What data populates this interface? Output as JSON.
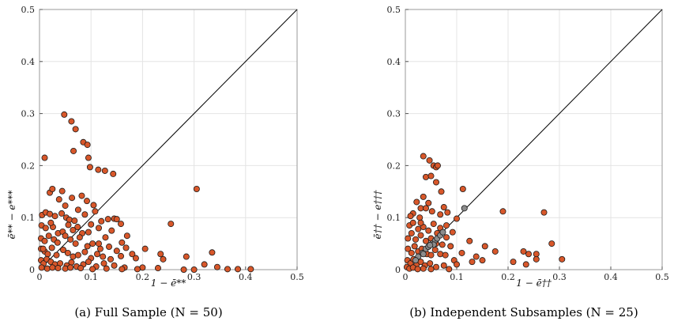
{
  "chart_data": [
    {
      "type": "scatter",
      "caption": "(a) Full Sample (N = 50)",
      "xlabel": "1 − ē**",
      "ylabel": "ē** − e***",
      "xlim": [
        0,
        0.5
      ],
      "ylim": [
        0,
        0.5
      ],
      "xticks": [
        "0",
        "0.1",
        "0.2",
        "0.3",
        "0.4",
        "0.5"
      ],
      "yticks": [
        "0",
        "0.1",
        "0.2",
        "0.3",
        "0.4",
        "0.5"
      ],
      "grid": true,
      "reference_line": "y = x",
      "series": [
        {
          "color": "#D8572A",
          "points": [
            [
              0.048,
              0.298
            ],
            [
              0.062,
              0.285
            ],
            [
              0.07,
              0.27
            ],
            [
              0.085,
              0.245
            ],
            [
              0.093,
              0.24
            ],
            [
              0.066,
              0.228
            ],
            [
              0.095,
              0.215
            ],
            [
              0.01,
              0.215
            ],
            [
              0.098,
              0.197
            ],
            [
              0.114,
              0.192
            ],
            [
              0.127,
              0.19
            ],
            [
              0.143,
              0.184
            ],
            [
              0.02,
              0.148
            ],
            [
              0.025,
              0.155
            ],
            [
              0.044,
              0.151
            ],
            [
              0.063,
              0.138
            ],
            [
              0.082,
              0.142
            ],
            [
              0.092,
              0.132
            ],
            [
              0.105,
              0.124
            ],
            [
              0.305,
              0.155
            ],
            [
              0.005,
              0.105
            ],
            [
              0.012,
              0.11
            ],
            [
              0.02,
              0.107
            ],
            [
              0.03,
              0.103
            ],
            [
              0.043,
              0.108
            ],
            [
              0.052,
              0.1
            ],
            [
              0.058,
              0.096
            ],
            [
              0.068,
              0.094
            ],
            [
              0.088,
              0.106
            ],
            [
              0.1,
              0.087
            ],
            [
              0.108,
              0.112
            ],
            [
              0.12,
              0.093
            ],
            [
              0.133,
              0.097
            ],
            [
              0.145,
              0.098
            ],
            [
              0.15,
              0.097
            ],
            [
              0.004,
              0.085
            ],
            [
              0.012,
              0.08
            ],
            [
              0.026,
              0.082
            ],
            [
              0.036,
              0.07
            ],
            [
              0.045,
              0.073
            ],
            [
              0.056,
              0.086
            ],
            [
              0.065,
              0.076
            ],
            [
              0.074,
              0.082
            ],
            [
              0.083,
              0.07
            ],
            [
              0.115,
              0.08
            ],
            [
              0.128,
              0.062
            ],
            [
              0.14,
              0.075
            ],
            [
              0.16,
              0.052
            ],
            [
              0.17,
              0.065
            ],
            [
              0.255,
              0.088
            ],
            [
              0.003,
              0.06
            ],
            [
              0.01,
              0.055
            ],
            [
              0.018,
              0.065
            ],
            [
              0.028,
              0.058
            ],
            [
              0.035,
              0.052
            ],
            [
              0.05,
              0.065
            ],
            [
              0.06,
              0.058
            ],
            [
              0.07,
              0.05
            ],
            [
              0.078,
              0.062
            ],
            [
              0.093,
              0.045
            ],
            [
              0.103,
              0.05
            ],
            [
              0.118,
              0.04
            ],
            [
              0.135,
              0.044
            ],
            [
              0.15,
              0.036
            ],
            [
              0.168,
              0.042
            ],
            [
              0.18,
              0.03
            ],
            [
              0.205,
              0.04
            ],
            [
              0.003,
              0.04
            ],
            [
              0.01,
              0.035
            ],
            [
              0.016,
              0.03
            ],
            [
              0.024,
              0.042
            ],
            [
              0.033,
              0.028
            ],
            [
              0.046,
              0.038
            ],
            [
              0.055,
              0.032
            ],
            [
              0.065,
              0.025
            ],
            [
              0.075,
              0.028
            ],
            [
              0.088,
              0.034
            ],
            [
              0.1,
              0.022
            ],
            [
              0.112,
              0.03
            ],
            [
              0.123,
              0.025
            ],
            [
              0.138,
              0.02
            ],
            [
              0.158,
              0.026
            ],
            [
              0.187,
              0.022
            ],
            [
              0.24,
              0.02
            ],
            [
              0.003,
              0.018
            ],
            [
              0.008,
              0.012
            ],
            [
              0.014,
              0.02
            ],
            [
              0.022,
              0.015
            ],
            [
              0.03,
              0.01
            ],
            [
              0.04,
              0.012
            ],
            [
              0.053,
              0.008
            ],
            [
              0.062,
              0.014
            ],
            [
              0.072,
              0.006
            ],
            [
              0.085,
              0.01
            ],
            [
              0.095,
              0.015
            ],
            [
              0.11,
              0.006
            ],
            [
              0.125,
              0.012
            ],
            [
              0.145,
              0.008
            ],
            [
              0.165,
              0.004
            ],
            [
              0.2,
              0.004
            ],
            [
              0.004,
              0.004
            ],
            [
              0.015,
              0.002
            ],
            [
              0.025,
              0.004
            ],
            [
              0.036,
              0.003
            ],
            [
              0.05,
              0.002
            ],
            [
              0.06,
              0.004
            ],
            [
              0.08,
              0.003
            ],
            [
              0.103,
              0.001
            ],
            [
              0.13,
              0.002
            ],
            [
              0.16,
              0.001
            ],
            [
              0.19,
              0.001
            ],
            [
              0.28,
              0.0
            ],
            [
              0.3,
              0.0
            ],
            [
              0.285,
              0.025
            ],
            [
              0.32,
              0.01
            ],
            [
              0.335,
              0.033
            ],
            [
              0.345,
              0.005
            ],
            [
              0.365,
              0.001
            ],
            [
              0.385,
              0.001
            ],
            [
              0.41,
              0.001
            ],
            [
              0.235,
              0.03
            ],
            [
              0.23,
              0.003
            ],
            [
              0.158,
              0.088
            ],
            [
              0.095,
              0.072
            ],
            [
              0.05,
              0.123
            ],
            [
              0.038,
              0.135
            ],
            [
              0.075,
              0.115
            ],
            [
              0.115,
              0.05
            ],
            [
              0.022,
              0.09
            ],
            [
              0.007,
              0.04
            ]
          ]
        }
      ]
    },
    {
      "type": "scatter",
      "caption": "(b) Independent Subsamples (N = 25)",
      "xlabel": "1 − ē††",
      "ylabel": "ē†† − e†††",
      "xlim": [
        0,
        0.5
      ],
      "ylim": [
        0,
        0.5
      ],
      "xticks": [
        "0",
        "0.1",
        "0.2",
        "0.3",
        "0.4",
        "0.5"
      ],
      "yticks": [
        "0",
        "0.1",
        "0.2",
        "0.3",
        "0.4",
        "0.5"
      ],
      "grid": true,
      "reference_line": "y = x",
      "series": [
        {
          "color": "#D8572A",
          "points": [
            [
              0.035,
              0.218
            ],
            [
              0.047,
              0.21
            ],
            [
              0.055,
              0.2
            ],
            [
              0.06,
              0.197
            ],
            [
              0.063,
              0.2
            ],
            [
              0.04,
              0.178
            ],
            [
              0.05,
              0.18
            ],
            [
              0.06,
              0.168
            ],
            [
              0.07,
              0.15
            ],
            [
              0.112,
              0.155
            ],
            [
              0.035,
              0.14
            ],
            [
              0.022,
              0.13
            ],
            [
              0.045,
              0.128
            ],
            [
              0.03,
              0.118
            ],
            [
              0.015,
              0.108
            ],
            [
              0.01,
              0.103
            ],
            [
              0.028,
              0.1
            ],
            [
              0.04,
              0.118
            ],
            [
              0.052,
              0.112
            ],
            [
              0.068,
              0.106
            ],
            [
              0.075,
              0.12
            ],
            [
              0.082,
              0.11
            ],
            [
              0.1,
              0.098
            ],
            [
              0.19,
              0.112
            ],
            [
              0.27,
              0.11
            ],
            [
              0.008,
              0.085
            ],
            [
              0.015,
              0.09
            ],
            [
              0.025,
              0.078
            ],
            [
              0.035,
              0.082
            ],
            [
              0.045,
              0.075
            ],
            [
              0.055,
              0.088
            ],
            [
              0.068,
              0.08
            ],
            [
              0.08,
              0.085
            ],
            [
              0.092,
              0.072
            ],
            [
              0.125,
              0.055
            ],
            [
              0.155,
              0.045
            ],
            [
              0.005,
              0.06
            ],
            [
              0.012,
              0.07
            ],
            [
              0.02,
              0.058
            ],
            [
              0.03,
              0.066
            ],
            [
              0.04,
              0.055
            ],
            [
              0.05,
              0.06
            ],
            [
              0.06,
              0.05
            ],
            [
              0.072,
              0.048
            ],
            [
              0.08,
              0.062
            ],
            [
              0.088,
              0.045
            ],
            [
              0.11,
              0.032
            ],
            [
              0.138,
              0.025
            ],
            [
              0.175,
              0.035
            ],
            [
              0.23,
              0.035
            ],
            [
              0.24,
              0.03
            ],
            [
              0.255,
              0.03
            ],
            [
              0.285,
              0.05
            ],
            [
              0.005,
              0.04
            ],
            [
              0.012,
              0.032
            ],
            [
              0.018,
              0.045
            ],
            [
              0.025,
              0.035
            ],
            [
              0.032,
              0.04
            ],
            [
              0.042,
              0.03
            ],
            [
              0.05,
              0.028
            ],
            [
              0.058,
              0.038
            ],
            [
              0.068,
              0.03
            ],
            [
              0.078,
              0.028
            ],
            [
              0.095,
              0.018
            ],
            [
              0.13,
              0.015
            ],
            [
              0.15,
              0.018
            ],
            [
              0.21,
              0.015
            ],
            [
              0.235,
              0.01
            ],
            [
              0.255,
              0.02
            ],
            [
              0.305,
              0.02
            ],
            [
              0.004,
              0.018
            ],
            [
              0.01,
              0.012
            ],
            [
              0.016,
              0.02
            ],
            [
              0.022,
              0.01
            ],
            [
              0.03,
              0.015
            ],
            [
              0.038,
              0.008
            ],
            [
              0.048,
              0.012
            ],
            [
              0.06,
              0.005
            ],
            [
              0.075,
              0.008
            ],
            [
              0.003,
              0.005
            ],
            [
              0.008,
              0.002
            ],
            [
              0.015,
              0.004
            ],
            [
              0.024,
              0.001
            ],
            [
              0.035,
              0.002
            ],
            [
              0.05,
              0.001
            ],
            [
              0.085,
              0.001
            ],
            [
              0.1,
              0.01
            ],
            [
              0.062,
              0.07
            ],
            [
              0.03,
              0.09
            ]
          ]
        },
        {
          "color": "#8C8C8C",
          "points": [
            [
              0.025,
              0.025
            ],
            [
              0.033,
              0.032
            ],
            [
              0.04,
              0.04
            ],
            [
              0.045,
              0.044
            ],
            [
              0.052,
              0.05
            ],
            [
              0.058,
              0.056
            ],
            [
              0.062,
              0.06
            ],
            [
              0.068,
              0.066
            ],
            [
              0.073,
              0.072
            ],
            [
              0.055,
              0.048
            ],
            [
              0.035,
              0.03
            ],
            [
              0.115,
              0.118
            ],
            [
              0.02,
              0.018
            ],
            [
              0.048,
              0.047
            ]
          ]
        }
      ]
    }
  ]
}
